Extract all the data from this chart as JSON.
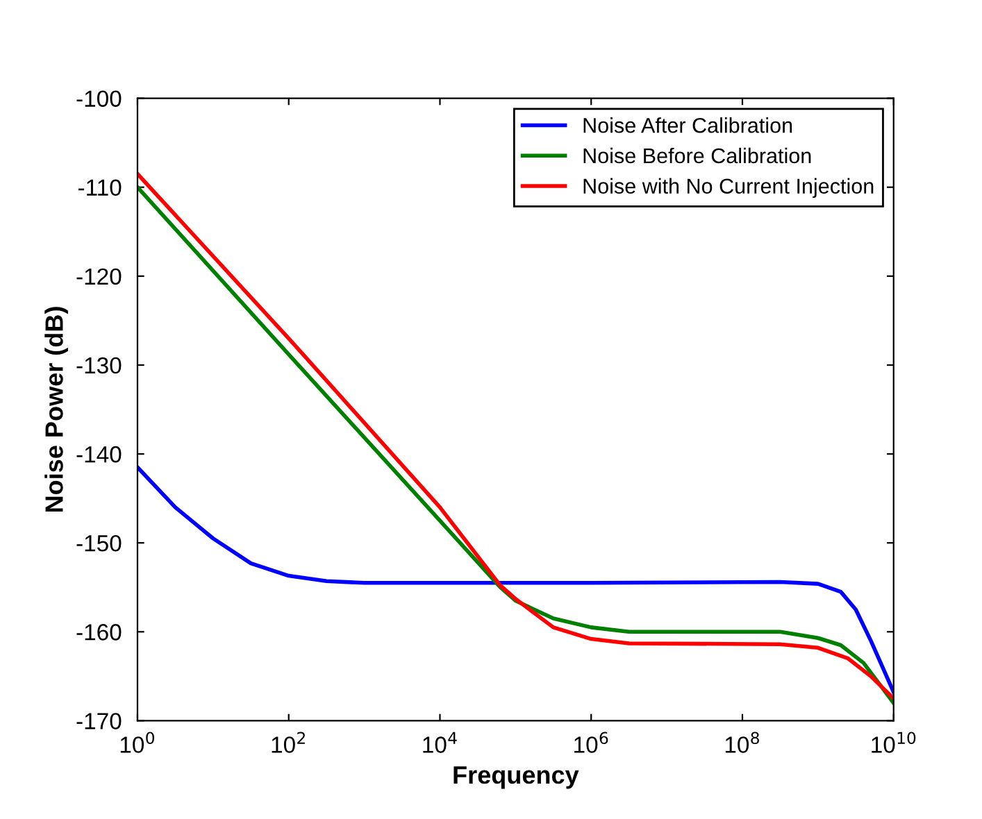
{
  "chart_data": {
    "type": "line",
    "xlabel": "Frequency",
    "ylabel": "Noise Power (dB)",
    "log": "x",
    "xlim": [
      1,
      10000000000.0
    ],
    "ylim": [
      -170,
      -100
    ],
    "xticks": [
      {
        "value": 1,
        "label": "10$^{0}$"
      },
      {
        "value": 100,
        "label": "10$^{2}$"
      },
      {
        "value": 10000,
        "label": "10$^{4}$"
      },
      {
        "value": 1000000,
        "label": "10$^{6}$"
      },
      {
        "value": 100000000,
        "label": "10$^{8}$"
      },
      {
        "value": 10000000000,
        "label": "10$^{10}$"
      }
    ],
    "yticks": [
      -170,
      -160,
      -150,
      -140,
      -130,
      -120,
      -110,
      -100
    ],
    "grid": false,
    "legend": "top right",
    "marker": "none",
    "line_style": "solid",
    "series": [
      {
        "name": "Noise After Calibration",
        "color": "#0000ff",
        "x": [
          1,
          3.16,
          10,
          31.6,
          100,
          316,
          1000,
          10000.0,
          1000000.0,
          316000000.0,
          1000000000.0,
          2000000000.0,
          3160000000.0,
          5000000000.0,
          10000000000.0
        ],
        "values": [
          -141.5,
          -146,
          -149.5,
          -152.3,
          -153.7,
          -154.3,
          -154.5,
          -154.5,
          -154.5,
          -154.4,
          -154.6,
          -155.5,
          -157.5,
          -161,
          -166.8
        ]
      },
      {
        "name": "Noise Before Calibration",
        "color": "#008000",
        "x": [
          1,
          100,
          10000.0,
          63000.0,
          100000.0,
          316000.0,
          1000000.0,
          3160000.0,
          316000000.0,
          1000000000.0,
          2000000000.0,
          4000000000.0,
          10000000000.0
        ],
        "values": [
          -110,
          -128.8,
          -147.5,
          -155,
          -156.5,
          -158.5,
          -159.5,
          -160,
          -160,
          -160.7,
          -161.5,
          -163.5,
          -168
        ]
      },
      {
        "name": "Noise with No Current Injection",
        "color": "#ff0000",
        "x": [
          1,
          100,
          10000.0,
          63000.0,
          100000.0,
          316000.0,
          1000000.0,
          3160000.0,
          316000000.0,
          1000000000.0,
          2500000000.0,
          5000000000.0,
          10000000000.0
        ],
        "values": [
          -108.5,
          -127,
          -146,
          -154.8,
          -156.3,
          -159.5,
          -160.8,
          -161.3,
          -161.4,
          -161.8,
          -163,
          -165,
          -167.5
        ]
      }
    ]
  }
}
